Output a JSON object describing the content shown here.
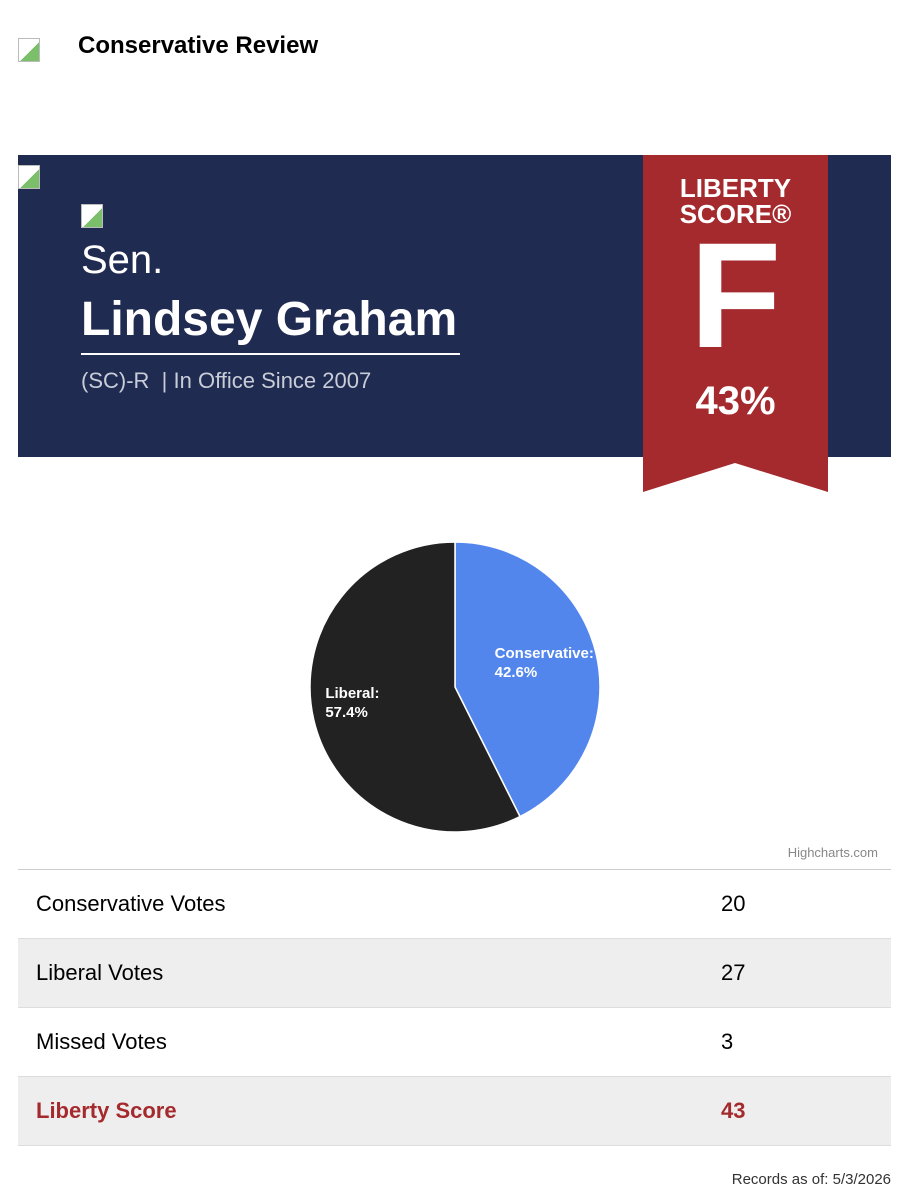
{
  "header": {
    "title": "Conservative Review"
  },
  "profile": {
    "prefix": "Sen.",
    "name": "Lindsey Graham",
    "party": "(SC)-R",
    "since": "| In Office Since 2007"
  },
  "badge": {
    "title": "LIBERTY SCORE®",
    "grade": "F",
    "score": "43%"
  },
  "chart_data": {
    "type": "pie",
    "categories": [
      "Conservative:",
      "Liberal:"
    ],
    "values": [
      42.6,
      57.4
    ],
    "value_labels": [
      "42.6%",
      "57.4%"
    ],
    "colors": [
      "#5286ec",
      "#222222"
    ],
    "credits": "Highcharts.com"
  },
  "table": {
    "rows": [
      [
        "Conservative Votes",
        "20"
      ],
      [
        "Liberal Votes",
        "27"
      ],
      [
        "Missed Votes",
        "3"
      ],
      [
        "Liberty Score",
        "43"
      ]
    ]
  },
  "footer": {
    "records": "Records as of: 5/3/2026"
  }
}
